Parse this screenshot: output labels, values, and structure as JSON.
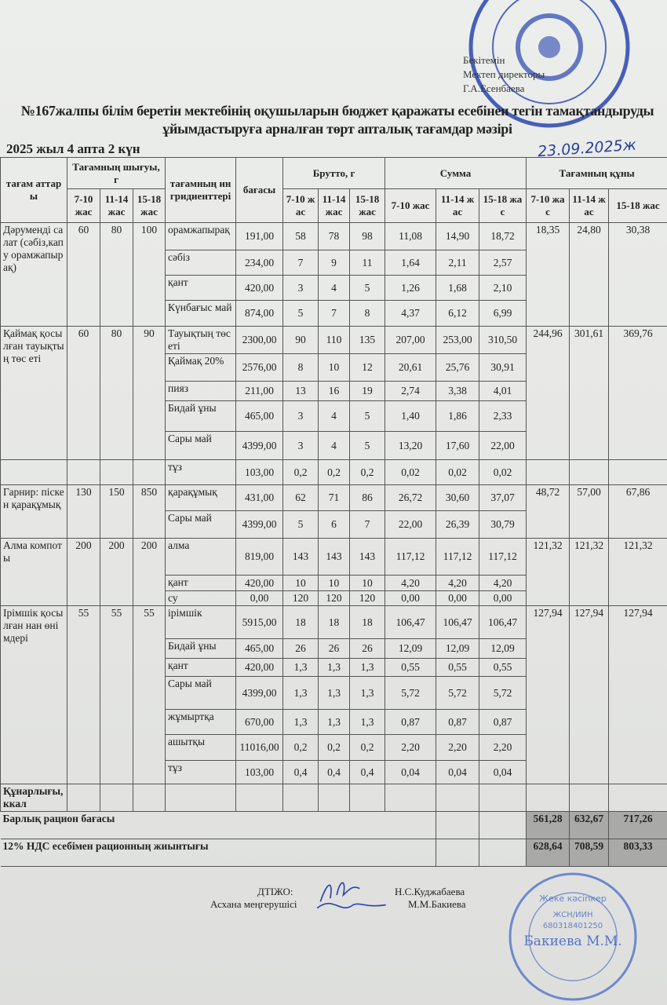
{
  "approval": {
    "lines": [
      "Бекітемін",
      "Мектеп директоры",
      "Г.А.Есенбаева"
    ]
  },
  "title": "№167жалпы білім беретін мектебінің оқушыларын бюджет қаражаты есебінен тегін тамақтандыруды ұйымдастыруға арналған төрт апталық тағамдар мәзірі",
  "week_label": "2025 жыл 4 апта 2 күн",
  "handwritten_date": "23.09.2025ж",
  "table": {
    "headers": {
      "dish": "тағам аттары",
      "output": "Тағамның шығуы, г",
      "ingredients": "тағамның ингридиенттері",
      "price": "бағасы",
      "brutto": "Брутто, г",
      "sum": "Сумма",
      "cost": "Тағамның құны",
      "ages": [
        "7-10 жас",
        "11-14 жас",
        "15-18 жас"
      ]
    },
    "groups": [
      {
        "name": "Дәруменді салат (сәбіз,капу орамжапырақ)",
        "output": [
          "60",
          "80",
          "100"
        ],
        "cost": [
          "18,35",
          "24,80",
          "30,38"
        ],
        "items": [
          {
            "name": "орамжапырақ",
            "price": "191,00",
            "brutto": [
              "58",
              "78",
              "98"
            ],
            "sum": [
              "11,08",
              "14,90",
              "18,72"
            ]
          },
          {
            "name": "сәбіз",
            "price": "234,00",
            "brutto": [
              "7",
              "9",
              "11"
            ],
            "sum": [
              "1,64",
              "2,11",
              "2,57"
            ]
          },
          {
            "name": "қант",
            "price": "420,00",
            "brutto": [
              "3",
              "4",
              "5"
            ],
            "sum": [
              "1,26",
              "1,68",
              "2,10"
            ]
          },
          {
            "name": "Күнбағыс май",
            "price": "874,00",
            "brutto": [
              "5",
              "7",
              "8"
            ],
            "sum": [
              "4,37",
              "6,12",
              "6,99"
            ]
          }
        ]
      },
      {
        "name": "Қаймақ қосылған тауықтың төс еті",
        "output": [
          "60",
          "80",
          "90"
        ],
        "cost": [
          "244,96",
          "301,61",
          "369,76"
        ],
        "items": [
          {
            "name": "Тауықтың төс еті",
            "price": "2300,00",
            "brutto": [
              "90",
              "110",
              "135"
            ],
            "sum": [
              "207,00",
              "253,00",
              "310,50"
            ]
          },
          {
            "name": "Қаймақ 20%",
            "price": "2576,00",
            "brutto": [
              "8",
              "10",
              "12"
            ],
            "sum": [
              "20,61",
              "25,76",
              "30,91"
            ]
          },
          {
            "name": "пияз",
            "price": "211,00",
            "brutto": [
              "13",
              "16",
              "19"
            ],
            "sum": [
              "2,74",
              "3,38",
              "4,01"
            ]
          },
          {
            "name": "Бидай ұны",
            "price": "465,00",
            "brutto": [
              "3",
              "4",
              "5"
            ],
            "sum": [
              "1,40",
              "1,86",
              "2,33"
            ]
          },
          {
            "name": "Сары май",
            "price": "4399,00",
            "brutto": [
              "3",
              "4",
              "5"
            ],
            "sum": [
              "13,20",
              "17,60",
              "22,00"
            ]
          }
        ]
      },
      {
        "name": "",
        "output": [
          "",
          "",
          ""
        ],
        "cost": [
          "",
          "",
          ""
        ],
        "items": [
          {
            "name": "тұз",
            "price": "103,00",
            "brutto": [
              "0,2",
              "0,2",
              "0,2"
            ],
            "sum": [
              "0,02",
              "0,02",
              "0,02"
            ]
          }
        ]
      },
      {
        "name": "Гарнир: піскен қарақұмық",
        "output": [
          "130",
          "150",
          "850"
        ],
        "cost": [
          "48,72",
          "57,00",
          "67,86"
        ],
        "items": [
          {
            "name": "қарақұмық",
            "price": "431,00",
            "brutto": [
              "62",
              "71",
              "86"
            ],
            "sum": [
              "26,72",
              "30,60",
              "37,07"
            ]
          },
          {
            "name": "Сары май",
            "price": "4399,00",
            "brutto": [
              "5",
              "6",
              "7"
            ],
            "sum": [
              "22,00",
              "26,39",
              "30,79"
            ]
          }
        ]
      },
      {
        "name": "Алма компоты",
        "output": [
          "200",
          "200",
          "200"
        ],
        "cost": [
          "121,32",
          "121,32",
          "121,32"
        ],
        "items": [
          {
            "name": "алма",
            "price": "819,00",
            "brutto": [
              "143",
              "143",
              "143"
            ],
            "sum": [
              "117,12",
              "117,12",
              "117,12"
            ]
          },
          {
            "name": "қант",
            "price": "420,00",
            "brutto": [
              "10",
              "10",
              "10"
            ],
            "sum": [
              "4,20",
              "4,20",
              "4,20"
            ]
          },
          {
            "name": "су",
            "price": "0,00",
            "brutto": [
              "120",
              "120",
              "120"
            ],
            "sum": [
              "0,00",
              "0,00",
              "0,00"
            ]
          }
        ]
      },
      {
        "name": "Ірімшік қосылған нан өнімдері",
        "output": [
          "55",
          "55",
          "55"
        ],
        "cost": [
          "127,94",
          "127,94",
          "127,94"
        ],
        "items": [
          {
            "name": "ірімшік",
            "price": "5915,00",
            "brutto": [
              "18",
              "18",
              "18"
            ],
            "sum": [
              "106,47",
              "106,47",
              "106,47"
            ]
          },
          {
            "name": "Бидай ұны",
            "price": "465,00",
            "brutto": [
              "26",
              "26",
              "26"
            ],
            "sum": [
              "12,09",
              "12,09",
              "12,09"
            ]
          },
          {
            "name": "қант",
            "price": "420,00",
            "brutto": [
              "1,3",
              "1,3",
              "1,3"
            ],
            "sum": [
              "0,55",
              "0,55",
              "0,55"
            ]
          },
          {
            "name": "Сары май",
            "price": "4399,00",
            "brutto": [
              "1,3",
              "1,3",
              "1,3"
            ],
            "sum": [
              "5,72",
              "5,72",
              "5,72"
            ]
          },
          {
            "name": "жұмыртқа",
            "price": "670,00",
            "brutto": [
              "1,3",
              "1,3",
              "1,3"
            ],
            "sum": [
              "0,87",
              "0,87",
              "0,87"
            ]
          },
          {
            "name": "ашытқы",
            "price": "11016,00",
            "brutto": [
              "0,2",
              "0,2",
              "0,2"
            ],
            "sum": [
              "2,20",
              "2,20",
              "2,20"
            ]
          },
          {
            "name": "тұз",
            "price": "103,00",
            "brutto": [
              "0,4",
              "0,4",
              "0,4"
            ],
            "sum": [
              "0,04",
              "0,04",
              "0,04"
            ]
          }
        ]
      }
    ],
    "kcal_label": "Құнарлығы, ккал",
    "total_label": "Барлық рацион бағасы",
    "total": [
      "561,28",
      "632,67",
      "717,26"
    ],
    "vat_label": "12% НДС есебімен рационның жиынтығы",
    "vat_total": [
      "628,64",
      "708,59",
      "803,33"
    ]
  },
  "signatures": {
    "dtizho_label": "ДТІЖО:",
    "dtizho_name": "Н.С.Куджабаева",
    "kitchen_label": "Асхана меңгерушісі",
    "kitchen_name": "М.М.Бакиева"
  },
  "stamps": {
    "school_stamp_text": "№167 ЖАЛПЫ БІЛІМ БЕРЕТІН МЕКТЕБІ",
    "entrepreneur_stamp_text": [
      "Жеке кәсіпкер",
      "ЖСН/ИИН",
      "680318401250",
      "Бакиева М.М."
    ]
  },
  "colors": {
    "ink_blue": "#2a45b0",
    "paper": "#e8e9e7",
    "shade": "#a9aaa8"
  }
}
